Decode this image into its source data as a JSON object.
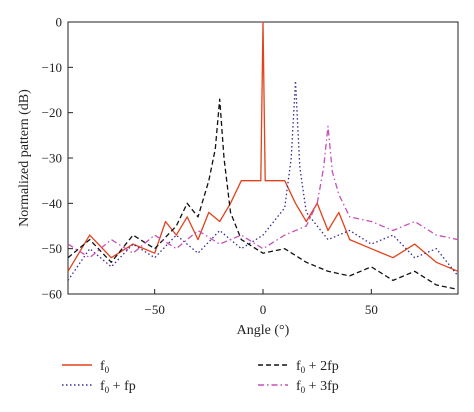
{
  "chart_data": {
    "type": "line",
    "title": "",
    "xlabel": "Angle (°)",
    "ylabel": "Normalized pattern (dB)",
    "xlim": [
      -90,
      90
    ],
    "ylim": [
      -60,
      0
    ],
    "xticks": [
      -50,
      0,
      50
    ],
    "xtick_labels": [
      "−50",
      "0",
      "50"
    ],
    "yticks": [
      0,
      -10,
      -20,
      -30,
      -40,
      -50,
      -60
    ],
    "ytick_labels": [
      "0",
      "−10",
      "−20",
      "−30",
      "−40",
      "−50",
      "−60"
    ],
    "grid": false,
    "legend": "bottom",
    "series": [
      {
        "name": "f0",
        "legend_base": "f",
        "legend_sub": "0",
        "legend_suffix": "",
        "color": "#e2421c",
        "style": "solid",
        "x": [
          -90,
          -80,
          -70,
          -60,
          -50,
          -45,
          -40,
          -35,
          -30,
          -25,
          -20,
          -15,
          -10,
          -5,
          -1,
          0,
          1,
          5,
          10,
          15,
          20,
          25,
          30,
          35,
          40,
          50,
          60,
          70,
          80,
          90
        ],
        "y": [
          -55,
          -47,
          -52,
          -49,
          -51,
          -44,
          -47,
          -43,
          -48,
          -42,
          -44,
          -40,
          -35,
          -35,
          -35,
          0,
          -35,
          -35,
          -35,
          -40,
          -44,
          -40,
          -46,
          -42,
          -48,
          -50,
          -52,
          -49,
          -53,
          -55
        ]
      },
      {
        "name": "f0 + fp",
        "legend_base": "f",
        "legend_sub": "0",
        "legend_suffix": " + fp",
        "color": "#3b2a8c",
        "style": "dotted",
        "x": [
          -90,
          -80,
          -70,
          -60,
          -50,
          -40,
          -30,
          -20,
          -10,
          0,
          5,
          10,
          13,
          15,
          17,
          20,
          25,
          30,
          40,
          50,
          60,
          70,
          80,
          90
        ],
        "y": [
          -57,
          -50,
          -54,
          -49,
          -52,
          -47,
          -51,
          -46,
          -50,
          -47,
          -44,
          -41,
          -30,
          -13,
          -32,
          -42,
          -45,
          -48,
          -46,
          -49,
          -47,
          -52,
          -50,
          -56
        ]
      },
      {
        "name": "f0 + 2fp",
        "legend_base": "f",
        "legend_sub": "0",
        "legend_suffix": " + 2fp",
        "color": "#111111",
        "style": "dashed",
        "x": [
          -90,
          -80,
          -70,
          -60,
          -50,
          -40,
          -35,
          -30,
          -25,
          -22,
          -20,
          -18,
          -15,
          -10,
          0,
          10,
          20,
          30,
          40,
          50,
          60,
          70,
          80,
          90
        ],
        "y": [
          -52,
          -48,
          -53,
          -47,
          -50,
          -45,
          -40,
          -43,
          -35,
          -28,
          -17,
          -30,
          -42,
          -48,
          -51,
          -50,
          -53,
          -55,
          -56,
          -54,
          -57,
          -55,
          -58,
          -59
        ]
      },
      {
        "name": "f0 + 3fp",
        "legend_base": "f",
        "legend_sub": "0",
        "legend_suffix": " + 3fp",
        "color": "#c850b4",
        "style": "dashdot",
        "x": [
          -90,
          -80,
          -70,
          -60,
          -50,
          -40,
          -30,
          -20,
          -10,
          0,
          10,
          20,
          25,
          28,
          30,
          32,
          35,
          40,
          50,
          60,
          70,
          80,
          90
        ],
        "y": [
          -49,
          -52,
          -48,
          -51,
          -47,
          -50,
          -46,
          -49,
          -47,
          -50,
          -47,
          -45,
          -40,
          -32,
          -23,
          -33,
          -38,
          -43,
          -44,
          -46,
          -44,
          -47,
          -48
        ]
      }
    ]
  }
}
